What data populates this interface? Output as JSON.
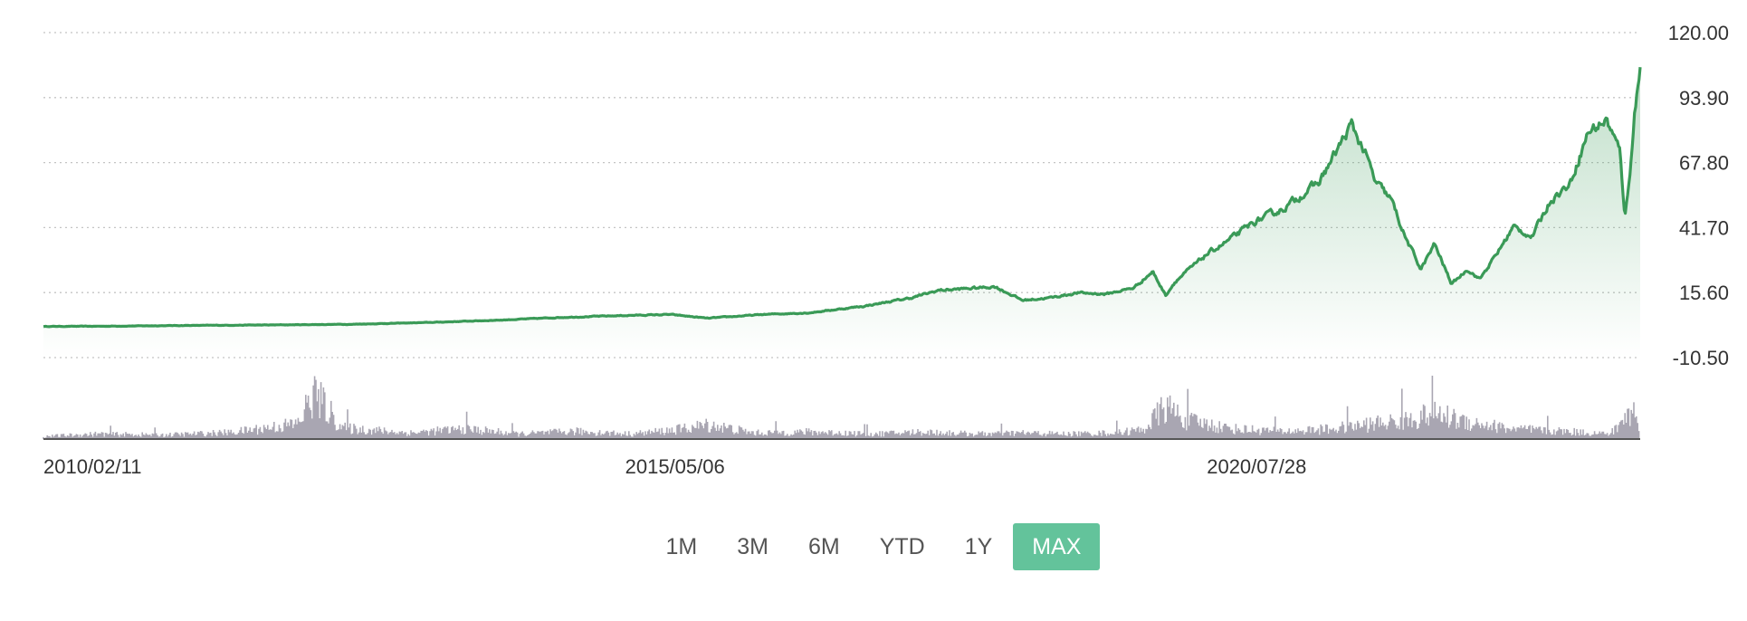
{
  "chart_data": {
    "type": "area",
    "title": "",
    "xlabel": "",
    "ylabel": "",
    "price_axis": {
      "position": "right",
      "ylim": [
        -10.5,
        120.0
      ],
      "ticks": [
        "120.00",
        "93.90",
        "67.80",
        "41.70",
        "15.60",
        "-10.50"
      ],
      "tick_values": [
        120.0,
        93.9,
        67.8,
        41.7,
        15.6,
        -10.5
      ],
      "grid": true
    },
    "x_axis": {
      "range": [
        "2010/02/11",
        "2024/06/20"
      ],
      "tick_labels": [
        "2010/02/11",
        "2015/05/06",
        "2020/07/28"
      ]
    },
    "series": [
      {
        "type": "line",
        "color": "#3a9a57",
        "fill_color": "#3a9a57",
        "points": [
          [
            "2010/02/11",
            2.0
          ],
          [
            "2010/09/01",
            2.1
          ],
          [
            "2011/06/01",
            2.4
          ],
          [
            "2012/03/01",
            2.6
          ],
          [
            "2012/12/01",
            2.9
          ],
          [
            "2013/08/01",
            3.6
          ],
          [
            "2014/04/01",
            4.6
          ],
          [
            "2014/10/01",
            5.6
          ],
          [
            "2015/05/06",
            6.4
          ],
          [
            "2015/10/01",
            6.8
          ],
          [
            "2016/02/01",
            5.3
          ],
          [
            "2016/08/01",
            6.8
          ],
          [
            "2017/01/01",
            7.5
          ],
          [
            "2017/07/01",
            10.2
          ],
          [
            "2017/12/01",
            13.5
          ],
          [
            "2018/03/01",
            16.5
          ],
          [
            "2018/06/01",
            17.2
          ],
          [
            "2018/09/01",
            18.0
          ],
          [
            "2018/12/01",
            12.5
          ],
          [
            "2019/03/01",
            13.5
          ],
          [
            "2019/06/01",
            15.5
          ],
          [
            "2019/09/01",
            15.0
          ],
          [
            "2019/12/01",
            17.5
          ],
          [
            "2020/02/01",
            24.0
          ],
          [
            "2020/03/15",
            14.5
          ],
          [
            "2020/04/15",
            20.0
          ],
          [
            "2020/07/28",
            31.0
          ],
          [
            "2020/10/01",
            36.0
          ],
          [
            "2021/01/01",
            44.0
          ],
          [
            "2021/04/01",
            49.0
          ],
          [
            "2021/08/01",
            60.0
          ],
          [
            "2021/11/15",
            83.0
          ],
          [
            "2022/01/01",
            71.0
          ],
          [
            "2022/02/01",
            60.0
          ],
          [
            "2022/03/25",
            53.0
          ],
          [
            "2022/05/10",
            38.0
          ],
          [
            "2022/07/01",
            25.0
          ],
          [
            "2022/08/15",
            35.0
          ],
          [
            "2022/10/10",
            19.0
          ],
          [
            "2022/12/01",
            25.0
          ],
          [
            "2023/01/10",
            21.0
          ],
          [
            "2023/03/01",
            30.0
          ],
          [
            "2023/05/01",
            42.0
          ],
          [
            "2023/07/01",
            38.0
          ],
          [
            "2023/09/01",
            53.0
          ],
          [
            "2023/11/01",
            59.0
          ],
          [
            "2024/01/01",
            80.0
          ],
          [
            "2024/03/01",
            85.0
          ],
          [
            "2024/04/15",
            72.0
          ],
          [
            "2024/05/01",
            46.0
          ],
          [
            "2024/05/15",
            60.0
          ],
          [
            "2024/06/01",
            88.0
          ],
          [
            "2024/06/20",
            105.0
          ]
        ]
      },
      {
        "type": "volume",
        "color": "#a9a6b2",
        "relative_volume": [
          [
            2010.1,
            0.05
          ],
          [
            2010.6,
            0.1
          ],
          [
            2011.2,
            0.08
          ],
          [
            2011.8,
            0.13
          ],
          [
            2012.4,
            0.3
          ],
          [
            2012.55,
            0.9
          ],
          [
            2012.8,
            0.22
          ],
          [
            2013.4,
            0.12
          ],
          [
            2013.9,
            0.2
          ],
          [
            2014.4,
            0.1
          ],
          [
            2014.9,
            0.15
          ],
          [
            2015.4,
            0.1
          ],
          [
            2015.8,
            0.18
          ],
          [
            2016.1,
            0.28
          ],
          [
            2016.5,
            0.12
          ],
          [
            2017.0,
            0.14
          ],
          [
            2017.6,
            0.1
          ],
          [
            2018.0,
            0.14
          ],
          [
            2018.5,
            0.1
          ],
          [
            2018.9,
            0.12
          ],
          [
            2019.3,
            0.1
          ],
          [
            2019.7,
            0.12
          ],
          [
            2020.0,
            0.18
          ],
          [
            2020.2,
            0.64
          ],
          [
            2020.4,
            0.36
          ],
          [
            2020.8,
            0.2
          ],
          [
            2021.3,
            0.15
          ],
          [
            2021.7,
            0.2
          ],
          [
            2022.0,
            0.28
          ],
          [
            2022.4,
            0.38
          ],
          [
            2022.6,
            0.5
          ],
          [
            2022.9,
            0.35
          ],
          [
            2023.3,
            0.2
          ],
          [
            2023.8,
            0.15
          ],
          [
            2024.2,
            0.1
          ],
          [
            2024.42,
            0.6
          ],
          [
            2024.5,
            0.15
          ],
          [
            2024.47,
            0.03
          ]
        ]
      }
    ],
    "legend": "none"
  },
  "range_selector": {
    "buttons": [
      "1M",
      "3M",
      "6M",
      "YTD",
      "1Y",
      "MAX"
    ],
    "active": "MAX",
    "active_color": "#63c39b"
  }
}
